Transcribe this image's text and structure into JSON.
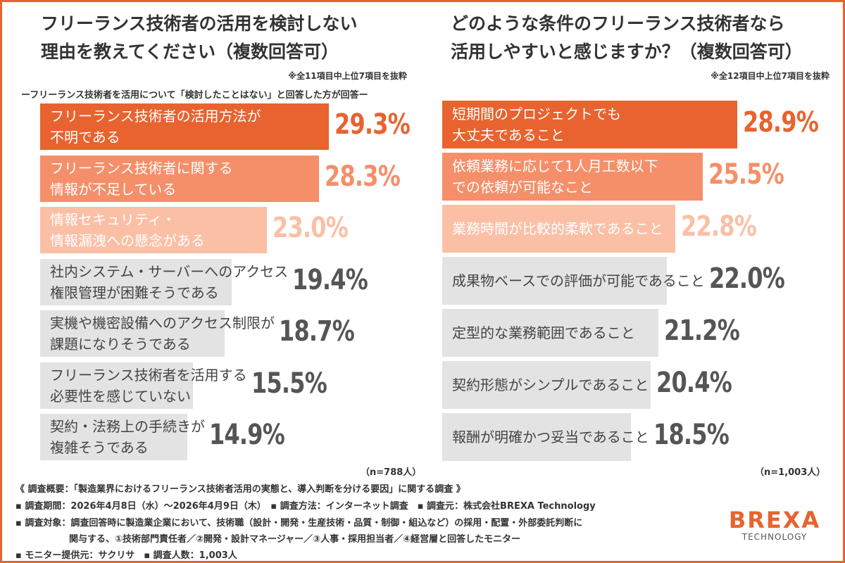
{
  "chart_data": [
    {
      "type": "bar",
      "orientation": "horizontal",
      "title": "フリーランス技術者の活用を検討しない理由を教えてください（複数回答可）",
      "title_lines": [
        "フリーランス技術者の活用を検討しない",
        "理由を教えてください（複数回答可）"
      ],
      "note": "※全11項目中上位7項目を抜粋",
      "subtitle": "ーフリーランス技術者を活用について「検討したことはない」と回答した方が回答ー",
      "sample": "（n=788人）",
      "categories": [
        [
          "フリーランス技術者の活用方法が",
          "不明である"
        ],
        [
          "フリーランス技術者に関する",
          "情報が不足している"
        ],
        [
          "情報セキュリティ・",
          "情報漏洩への懸念がある"
        ],
        [
          "社内システム・サーバーへのアクセス",
          "権限管理が困難そうである"
        ],
        [
          "実機や機密設備へのアクセス制限が",
          "課題になりそうである"
        ],
        [
          "フリーランス技術者を活用する",
          "必要性を感じていない"
        ],
        [
          "契約・法務上の手続きが",
          "複雑そうである"
        ]
      ],
      "values": [
        29.3,
        28.3,
        23.0,
        19.4,
        18.7,
        15.5,
        14.9
      ],
      "labels": [
        "29.3%",
        "28.3%",
        "23.0%",
        "19.4%",
        "18.7%",
        "15.5%",
        "14.9%"
      ],
      "unit": "%"
    },
    {
      "type": "bar",
      "orientation": "horizontal",
      "title": "どのような条件のフリーランス技術者なら活用しやすいと感じますか？（複数回答可）",
      "title_lines": [
        "どのような条件のフリーランス技術者なら",
        "活用しやすいと感じますか？（複数回答可）"
      ],
      "note": "※全12項目中上位7項目を抜粋",
      "sample": "（n=1,003人）",
      "categories": [
        [
          "短期間のプロジェクトでも",
          "大丈夫であること"
        ],
        [
          "依頼業務に応じて1人月工数以下",
          "での依頼が可能なこと"
        ],
        [
          "業務時間が比較的柔軟であること"
        ],
        [
          "成果物ベースでの評価が可能であること"
        ],
        [
          "定型的な業務範囲であること"
        ],
        [
          "契約形態がシンプルであること"
        ],
        [
          "報酬が明確かつ妥当であること"
        ]
      ],
      "values": [
        28.9,
        25.5,
        22.8,
        22.0,
        21.2,
        20.4,
        18.5
      ],
      "labels": [
        "28.9%",
        "25.5%",
        "22.8%",
        "22.0%",
        "21.2%",
        "20.4%",
        "18.5%"
      ],
      "unit": "%"
    }
  ],
  "colors": {
    "accent": "#e8632f",
    "rank1": "#e8632f",
    "rank2": "#f58f6a",
    "rank3": "#fbbfa6",
    "other": "#e3e3e3",
    "other_text": "#555555",
    "frame": "#e8632f"
  },
  "footer": {
    "summary": "《 調査概要：「製造業界におけるフリーランス技術者活用の実態と、導入判断を分ける要因」に関する調査 》",
    "line1": "▪ 調査期間：2026年4月8日（水）〜2026年4月9日（木）　▪ 調査方法：インターネット調査　▪ 調査元：株式会社BREXA Technology",
    "line2": "▪ 調査対象：調査回答時に製造業企業において、技術職（設計・開発・生産技術・品質・制御・組込など）の採用・配置・外部委託判断に",
    "line3": "関与する、①技術部門責任者／②開発・設計マネージャー／③人事・採用担当者／④経営層と回答したモニター",
    "line4": "▪ モニター提供元：サクリサ　▪ 調査人数：1,003人"
  },
  "logo": {
    "name": "BREXA",
    "sub": "TECHNOLOGY"
  }
}
